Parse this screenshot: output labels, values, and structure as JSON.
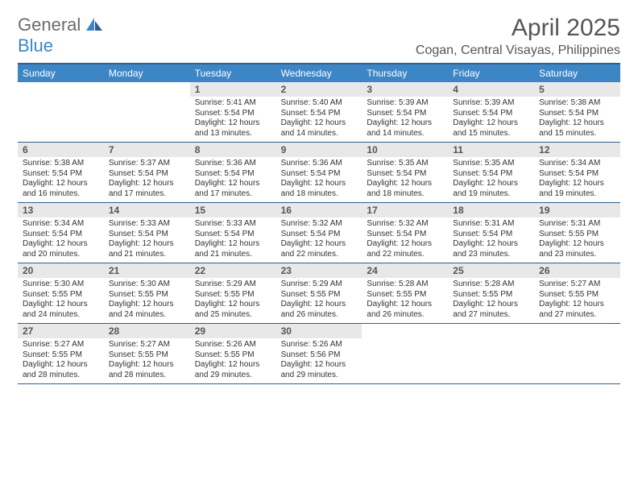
{
  "brand": {
    "part1": "General",
    "part2": "Blue"
  },
  "title": "April 2025",
  "location": "Cogan, Central Visayas, Philippines",
  "colors": {
    "header_bg": "#3d86c6",
    "border": "#2f5f8a",
    "daynum_bg": "#e8e8e8",
    "text": "#333333",
    "title_text": "#555555",
    "logo_gray": "#6b6b6b",
    "logo_blue": "#3d86c6",
    "background": "#ffffff"
  },
  "typography": {
    "title_fontsize": 30,
    "location_fontsize": 16,
    "dayhead_fontsize": 12,
    "daynum_fontsize": 12,
    "body_fontsize": 10
  },
  "day_headers": [
    "Sunday",
    "Monday",
    "Tuesday",
    "Wednesday",
    "Thursday",
    "Friday",
    "Saturday"
  ],
  "weeks": [
    [
      {
        "empty": true
      },
      {
        "empty": true
      },
      {
        "num": "1",
        "sunrise": "Sunrise: 5:41 AM",
        "sunset": "Sunset: 5:54 PM",
        "dl1": "Daylight: 12 hours",
        "dl2": "and 13 minutes."
      },
      {
        "num": "2",
        "sunrise": "Sunrise: 5:40 AM",
        "sunset": "Sunset: 5:54 PM",
        "dl1": "Daylight: 12 hours",
        "dl2": "and 14 minutes."
      },
      {
        "num": "3",
        "sunrise": "Sunrise: 5:39 AM",
        "sunset": "Sunset: 5:54 PM",
        "dl1": "Daylight: 12 hours",
        "dl2": "and 14 minutes."
      },
      {
        "num": "4",
        "sunrise": "Sunrise: 5:39 AM",
        "sunset": "Sunset: 5:54 PM",
        "dl1": "Daylight: 12 hours",
        "dl2": "and 15 minutes."
      },
      {
        "num": "5",
        "sunrise": "Sunrise: 5:38 AM",
        "sunset": "Sunset: 5:54 PM",
        "dl1": "Daylight: 12 hours",
        "dl2": "and 15 minutes."
      }
    ],
    [
      {
        "num": "6",
        "sunrise": "Sunrise: 5:38 AM",
        "sunset": "Sunset: 5:54 PM",
        "dl1": "Daylight: 12 hours",
        "dl2": "and 16 minutes."
      },
      {
        "num": "7",
        "sunrise": "Sunrise: 5:37 AM",
        "sunset": "Sunset: 5:54 PM",
        "dl1": "Daylight: 12 hours",
        "dl2": "and 17 minutes."
      },
      {
        "num": "8",
        "sunrise": "Sunrise: 5:36 AM",
        "sunset": "Sunset: 5:54 PM",
        "dl1": "Daylight: 12 hours",
        "dl2": "and 17 minutes."
      },
      {
        "num": "9",
        "sunrise": "Sunrise: 5:36 AM",
        "sunset": "Sunset: 5:54 PM",
        "dl1": "Daylight: 12 hours",
        "dl2": "and 18 minutes."
      },
      {
        "num": "10",
        "sunrise": "Sunrise: 5:35 AM",
        "sunset": "Sunset: 5:54 PM",
        "dl1": "Daylight: 12 hours",
        "dl2": "and 18 minutes."
      },
      {
        "num": "11",
        "sunrise": "Sunrise: 5:35 AM",
        "sunset": "Sunset: 5:54 PM",
        "dl1": "Daylight: 12 hours",
        "dl2": "and 19 minutes."
      },
      {
        "num": "12",
        "sunrise": "Sunrise: 5:34 AM",
        "sunset": "Sunset: 5:54 PM",
        "dl1": "Daylight: 12 hours",
        "dl2": "and 19 minutes."
      }
    ],
    [
      {
        "num": "13",
        "sunrise": "Sunrise: 5:34 AM",
        "sunset": "Sunset: 5:54 PM",
        "dl1": "Daylight: 12 hours",
        "dl2": "and 20 minutes."
      },
      {
        "num": "14",
        "sunrise": "Sunrise: 5:33 AM",
        "sunset": "Sunset: 5:54 PM",
        "dl1": "Daylight: 12 hours",
        "dl2": "and 21 minutes."
      },
      {
        "num": "15",
        "sunrise": "Sunrise: 5:33 AM",
        "sunset": "Sunset: 5:54 PM",
        "dl1": "Daylight: 12 hours",
        "dl2": "and 21 minutes."
      },
      {
        "num": "16",
        "sunrise": "Sunrise: 5:32 AM",
        "sunset": "Sunset: 5:54 PM",
        "dl1": "Daylight: 12 hours",
        "dl2": "and 22 minutes."
      },
      {
        "num": "17",
        "sunrise": "Sunrise: 5:32 AM",
        "sunset": "Sunset: 5:54 PM",
        "dl1": "Daylight: 12 hours",
        "dl2": "and 22 minutes."
      },
      {
        "num": "18",
        "sunrise": "Sunrise: 5:31 AM",
        "sunset": "Sunset: 5:54 PM",
        "dl1": "Daylight: 12 hours",
        "dl2": "and 23 minutes."
      },
      {
        "num": "19",
        "sunrise": "Sunrise: 5:31 AM",
        "sunset": "Sunset: 5:55 PM",
        "dl1": "Daylight: 12 hours",
        "dl2": "and 23 minutes."
      }
    ],
    [
      {
        "num": "20",
        "sunrise": "Sunrise: 5:30 AM",
        "sunset": "Sunset: 5:55 PM",
        "dl1": "Daylight: 12 hours",
        "dl2": "and 24 minutes."
      },
      {
        "num": "21",
        "sunrise": "Sunrise: 5:30 AM",
        "sunset": "Sunset: 5:55 PM",
        "dl1": "Daylight: 12 hours",
        "dl2": "and 24 minutes."
      },
      {
        "num": "22",
        "sunrise": "Sunrise: 5:29 AM",
        "sunset": "Sunset: 5:55 PM",
        "dl1": "Daylight: 12 hours",
        "dl2": "and 25 minutes."
      },
      {
        "num": "23",
        "sunrise": "Sunrise: 5:29 AM",
        "sunset": "Sunset: 5:55 PM",
        "dl1": "Daylight: 12 hours",
        "dl2": "and 26 minutes."
      },
      {
        "num": "24",
        "sunrise": "Sunrise: 5:28 AM",
        "sunset": "Sunset: 5:55 PM",
        "dl1": "Daylight: 12 hours",
        "dl2": "and 26 minutes."
      },
      {
        "num": "25",
        "sunrise": "Sunrise: 5:28 AM",
        "sunset": "Sunset: 5:55 PM",
        "dl1": "Daylight: 12 hours",
        "dl2": "and 27 minutes."
      },
      {
        "num": "26",
        "sunrise": "Sunrise: 5:27 AM",
        "sunset": "Sunset: 5:55 PM",
        "dl1": "Daylight: 12 hours",
        "dl2": "and 27 minutes."
      }
    ],
    [
      {
        "num": "27",
        "sunrise": "Sunrise: 5:27 AM",
        "sunset": "Sunset: 5:55 PM",
        "dl1": "Daylight: 12 hours",
        "dl2": "and 28 minutes."
      },
      {
        "num": "28",
        "sunrise": "Sunrise: 5:27 AM",
        "sunset": "Sunset: 5:55 PM",
        "dl1": "Daylight: 12 hours",
        "dl2": "and 28 minutes."
      },
      {
        "num": "29",
        "sunrise": "Sunrise: 5:26 AM",
        "sunset": "Sunset: 5:55 PM",
        "dl1": "Daylight: 12 hours",
        "dl2": "and 29 minutes."
      },
      {
        "num": "30",
        "sunrise": "Sunrise: 5:26 AM",
        "sunset": "Sunset: 5:56 PM",
        "dl1": "Daylight: 12 hours",
        "dl2": "and 29 minutes."
      },
      {
        "empty": true
      },
      {
        "empty": true
      },
      {
        "empty": true
      }
    ]
  ]
}
